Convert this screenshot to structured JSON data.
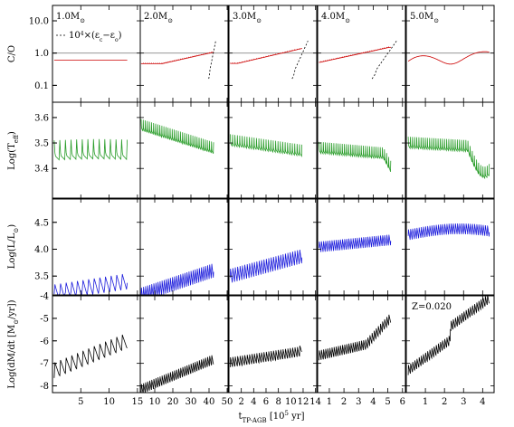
{
  "chart_data": {
    "type": "line",
    "columns": [
      {
        "mass": "1.0M",
        "x_ticks": [
          "5",
          "10",
          "15"
        ],
        "x_tick_values": [
          5,
          10,
          15
        ],
        "xlim": [
          0,
          15.5
        ]
      },
      {
        "mass": "2.0M",
        "x_ticks": [
          "10",
          "20",
          "30",
          "40",
          "50"
        ],
        "x_tick_values": [
          10,
          20,
          30,
          40,
          50
        ],
        "xlim": [
          2,
          50.5
        ]
      },
      {
        "mass": "3.0M",
        "x_ticks": [
          "2",
          "4",
          "6",
          "8",
          "10",
          "12",
          "14"
        ],
        "x_tick_values": [
          2,
          4,
          6,
          8,
          10,
          12,
          14
        ],
        "xlim": [
          0,
          14.2
        ]
      },
      {
        "mass": "4.0M",
        "x_ticks": [
          "1",
          "2",
          "3",
          "4",
          "5",
          "6"
        ],
        "x_tick_values": [
          1,
          2,
          3,
          4,
          5,
          6
        ],
        "xlim": [
          0.2,
          6.2
        ]
      },
      {
        "mass": "5.0M",
        "x_ticks": [
          "1",
          "2",
          "3",
          "4"
        ],
        "x_tick_values": [
          1,
          2,
          3,
          4
        ],
        "xlim": [
          0,
          4.6
        ]
      }
    ],
    "rows": [
      {
        "ylabel": "C/O",
        "scale": "log",
        "ylim": [
          0.03,
          30
        ],
        "ticks": [
          "10.0",
          "1.0",
          "0.1"
        ],
        "tick_values": [
          10,
          1,
          0.1
        ],
        "color": "#cc0000"
      },
      {
        "ylabel": "Log(T",
        "ylabel_sub": "eff",
        "ylabel_end": ")",
        "scale": "linear",
        "ylim": [
          3.28,
          3.66
        ],
        "ticks": [
          "3.6",
          "3.5",
          "3.4"
        ],
        "tick_values": [
          3.6,
          3.5,
          3.4
        ],
        "color": "#2a9d2a"
      },
      {
        "ylabel": "Log(L/L",
        "ylabel_end": ")",
        "scale": "linear",
        "ylim": [
          3.15,
          4.95
        ],
        "ticks": [
          "4.5",
          "4.0",
          "3.5"
        ],
        "tick_values": [
          4.5,
          4.0,
          3.5
        ],
        "color": "#1c1cdc"
      },
      {
        "ylabel": "Log(dM/dt [M",
        "ylabel_end": "/yr])",
        "scale": "linear",
        "ylim": [
          -8.3,
          -4.0
        ],
        "ticks": [
          "-4",
          "-5",
          "-6",
          "-7",
          "-8"
        ],
        "tick_values": [
          -4,
          -5,
          -6,
          -7,
          -8
        ],
        "color": "#000000"
      }
    ],
    "xlabel": "t",
    "xlabel_sub": "TP-AGB",
    "xlabel_unit": "[10",
    "xlabel_exp": "5",
    "xlabel_end": " yr]",
    "legend": "10",
    "legend_exp": "4",
    "legend_text": "×(ε",
    "legend_c": "c",
    "legend_mid": "−ε",
    "legend_o": "o",
    "legend_end": ")",
    "sun_symbol": "⊙",
    "metallicity": "Z=0.020",
    "reference_line_co": 1.0
  }
}
